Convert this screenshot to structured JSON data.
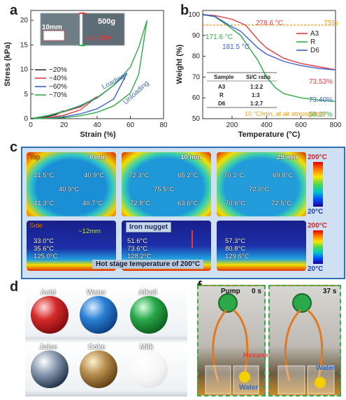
{
  "panels": {
    "a": {
      "label": "a"
    },
    "b": {
      "label": "b"
    },
    "c": {
      "label": "c"
    },
    "d": {
      "label": "d"
    },
    "f": {
      "label": "f"
    }
  },
  "chart_data": [
    {
      "type": "line",
      "panel": "a",
      "xlabel": "Strain (%)",
      "ylabel": "Stress (kPa)",
      "xlim": [
        0,
        80
      ],
      "ylim": [
        0,
        22
      ],
      "xticks": [
        0,
        20,
        40,
        60,
        80
      ],
      "yticks": [
        0,
        5,
        10,
        15,
        20
      ],
      "legend_position": "left",
      "annotations": {
        "inset_length": "10mm",
        "inset_mass": "500g",
        "inset_strain": "ε=~75%",
        "loading": "Loading",
        "unloading": "Unloading"
      },
      "series": [
        {
          "name": "~20%",
          "color": "#333333",
          "x": [
            0,
            5,
            10,
            15,
            20,
            15,
            10,
            5,
            0
          ],
          "y": [
            0,
            0.3,
            0.6,
            1.0,
            1.6,
            0.8,
            0.4,
            0.1,
            0
          ]
        },
        {
          "name": "~40%",
          "color": "#e23c3c",
          "x": [
            0,
            10,
            20,
            30,
            40,
            30,
            20,
            10,
            0
          ],
          "y": [
            0,
            0.6,
            1.4,
            2.4,
            4.5,
            1.8,
            0.7,
            0.2,
            0
          ]
        },
        {
          "name": "~60%",
          "color": "#3c5fd4",
          "x": [
            0,
            10,
            20,
            30,
            40,
            50,
            58,
            50,
            40,
            30,
            20,
            10,
            0
          ],
          "y": [
            0,
            0.6,
            1.5,
            2.6,
            4.2,
            6.8,
            9.3,
            4.0,
            2.0,
            1.0,
            0.4,
            0.1,
            0
          ]
        },
        {
          "name": "~70%",
          "color": "#2eaa4a",
          "x": [
            0,
            10,
            20,
            30,
            40,
            50,
            60,
            65,
            70,
            65,
            60,
            50,
            40,
            30,
            20,
            10,
            0
          ],
          "y": [
            0,
            0.6,
            1.5,
            2.7,
            4.3,
            6.8,
            10.5,
            14.5,
            20.0,
            9.0,
            5.2,
            2.6,
            1.3,
            0.6,
            0.2,
            0.05,
            0
          ]
        }
      ]
    },
    {
      "type": "line",
      "panel": "b",
      "xlabel": "Temperature (°C)",
      "ylabel": "Weight (%)",
      "xlim": [
        30,
        800
      ],
      "ylim": [
        50,
        102
      ],
      "xticks": [
        200,
        400,
        600,
        800
      ],
      "yticks": [
        50,
        60,
        70,
        80,
        90,
        100
      ],
      "legend_position": "right",
      "reference_line": {
        "label": "T5%",
        "y": 95,
        "color": "#f39a1e"
      },
      "annotations": [
        {
          "text": "278.6 °C",
          "color": "#e23c3c"
        },
        {
          "text": "171.6 °C",
          "color": "#2eaa4a"
        },
        {
          "text": "181.5 °C",
          "color": "#3c5fd4"
        },
        {
          "text": "73.53%",
          "color": "#e23c3c"
        },
        {
          "text": "73.40%",
          "color": "#3c5fd4"
        },
        {
          "text": "58.27%",
          "color": "#2eaa4a"
        },
        {
          "text": "10 °C/min, at air atmosphere",
          "color": "#f39a1e"
        }
      ],
      "table": {
        "headers": [
          "Sample",
          "Si/C ratio"
        ],
        "rows": [
          [
            "A3",
            "1:2.2"
          ],
          [
            "R",
            "1:3"
          ],
          [
            "D6",
            "1:2.7"
          ]
        ]
      },
      "series": [
        {
          "name": "A3",
          "color": "#e23c3c",
          "x": [
            30,
            100,
            200,
            278.6,
            350,
            400,
            500,
            600,
            700,
            800
          ],
          "y": [
            100,
            99.6,
            97.8,
            95,
            88,
            84,
            79,
            76.5,
            75,
            73.53
          ]
        },
        {
          "name": "R",
          "color": "#2eaa4a",
          "x": [
            30,
            100,
            171.6,
            250,
            300,
            350,
            400,
            450,
            500,
            600,
            700,
            800
          ],
          "y": [
            100,
            99,
            95,
            90,
            84,
            78,
            70,
            65,
            62,
            60,
            59,
            58.27
          ]
        },
        {
          "name": "D6",
          "color": "#3c5fd4",
          "x": [
            30,
            100,
            181.5,
            250,
            300,
            350,
            400,
            500,
            600,
            700,
            800
          ],
          "y": [
            100,
            99.2,
            95,
            92,
            88,
            84,
            81,
            77.5,
            75.5,
            74.2,
            73.4
          ]
        }
      ]
    }
  ],
  "panel_c": {
    "top_label": "Top",
    "side_label": "Side",
    "columns": [
      {
        "time": "0 min",
        "top": [
          "41.5°C",
          "40.9°C",
          "40.9°C",
          "41.3°C",
          "40.7°C"
        ],
        "side": [
          "33.0°C",
          "35.6°C",
          "125.0°C"
        ]
      },
      {
        "time": "10 min",
        "top": [
          "72.3°C",
          "65.2°C",
          "75.5°C",
          "72.8°C",
          "63.6°C"
        ],
        "side": [
          "51.6°C",
          "73.6°C",
          "128.2°C"
        ]
      },
      {
        "time": "25 min",
        "top": [
          "70.1°C",
          "69.8°C",
          "72.0°C",
          "70.6°C",
          "72.5°C"
        ],
        "side": [
          "57.3°C",
          "80.8°C",
          "129.6°C"
        ]
      }
    ],
    "side_dimension": "~12mm",
    "iron_label": "Iron nugget",
    "hot_stage_label": "Hot stage temperature of 200°C",
    "scale_top_max": "200°C",
    "scale_top_min": "20°C",
    "scale_side_max": "200°C",
    "scale_side_min": "20°C"
  },
  "panel_d": {
    "liquids": [
      {
        "name": "Acid",
        "color": "#d42a2a"
      },
      {
        "name": "Water",
        "color": "#2a7fd4"
      },
      {
        "name": "Alkali",
        "color": "#2aa84a"
      },
      {
        "name": "Juice",
        "color": "#2a3a5a"
      },
      {
        "name": "Coke",
        "color": "#8a6a2a"
      },
      {
        "name": "Milk",
        "color": "#f0f0f0"
      }
    ]
  },
  "panel_f": {
    "pump_label": "Pump",
    "time_left": "0 s",
    "time_right": "37 s",
    "hexane_label": "Hexane",
    "water_label_left": "Water",
    "water_label_right": "Water"
  }
}
